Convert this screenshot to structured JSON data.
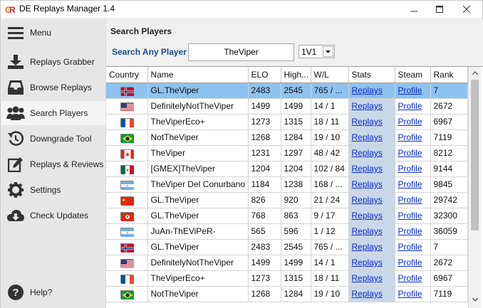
{
  "window": {
    "title": "DE Replays Manager 1.4"
  },
  "sidebar": {
    "items": [
      {
        "label": "Menu",
        "icon": "hamburger-icon"
      },
      {
        "label": "Replays Grabber",
        "icon": "download-icon"
      },
      {
        "label": "Browse Replays",
        "icon": "inbox-icon"
      },
      {
        "label": "Search Players",
        "icon": "users-icon"
      },
      {
        "label": "Downgrade Tool",
        "icon": "history-icon"
      },
      {
        "label": "Replays & Reviews",
        "icon": "edit-icon"
      },
      {
        "label": "Settings",
        "icon": "gear-icon"
      },
      {
        "label": "Check Updates",
        "icon": "cloud-download-icon"
      },
      {
        "label": "Help?",
        "icon": "help-icon"
      }
    ]
  },
  "main": {
    "title": "Search Players",
    "search_label": "Search Any Player",
    "search_value": "TheViper",
    "mode": "1V1"
  },
  "table": {
    "columns": [
      "Country",
      "Name",
      "ELO",
      "High...",
      "W/L",
      "Stats",
      "Steam",
      "Rank"
    ],
    "link_stats": "Replays",
    "link_steam": "Profile",
    "rows": [
      {
        "flag": "norway",
        "name": "GL.TheViper",
        "elo": "2483",
        "high": "2545",
        "wl": "765 / ...",
        "rank": "7"
      },
      {
        "flag": "usa",
        "name": "DefinitelyNotTheViper",
        "elo": "1499",
        "high": "1499",
        "wl": "14 / 1",
        "rank": "2672"
      },
      {
        "flag": "france",
        "name": "TheViperEco+",
        "elo": "1273",
        "high": "1315",
        "wl": "18 / 11",
        "rank": "6967"
      },
      {
        "flag": "brazil",
        "name": "NotTheViper",
        "elo": "1268",
        "high": "1284",
        "wl": "19 / 10",
        "rank": "7119"
      },
      {
        "flag": "canada",
        "name": "TheViper",
        "elo": "1231",
        "high": "1297",
        "wl": "48 / 42",
        "rank": "8212"
      },
      {
        "flag": "mexico",
        "name": "[GMEX]TheViper",
        "elo": "1204",
        "high": "1204",
        "wl": "102 / 84",
        "rank": "9144"
      },
      {
        "flag": "argentina",
        "name": "TheViper Del Conurbano",
        "elo": "1184",
        "high": "1238",
        "wl": "168 / ...",
        "rank": "9845"
      },
      {
        "flag": "china",
        "name": "GL.TheViper",
        "elo": "826",
        "high": "920",
        "wl": "21 / 24",
        "rank": "29742"
      },
      {
        "flag": "hongkong",
        "name": "GL.TheViper",
        "elo": "768",
        "high": "863",
        "wl": "9 / 17",
        "rank": "32300"
      },
      {
        "flag": "argentina",
        "name": "JuAn-ThEViPeR-",
        "elo": "565",
        "high": "596",
        "wl": "1 / 12",
        "rank": "36059"
      },
      {
        "flag": "norway",
        "name": "GL.TheViper",
        "elo": "2483",
        "high": "2545",
        "wl": "765 / ...",
        "rank": "7"
      },
      {
        "flag": "usa",
        "name": "DefinitelyNotTheViper",
        "elo": "1499",
        "high": "1499",
        "wl": "14 / 1",
        "rank": "2672"
      },
      {
        "flag": "france",
        "name": "TheViperEco+",
        "elo": "1273",
        "high": "1315",
        "wl": "18 / 11",
        "rank": "6967"
      },
      {
        "flag": "brazil",
        "name": "NotTheViper",
        "elo": "1268",
        "high": "1284",
        "wl": "19 / 10",
        "rank": "7119"
      }
    ]
  },
  "colors": {
    "selected_row": "#8ec2ef",
    "stats_column": "#c8d8ea",
    "link": "#0b2bd6",
    "search_label": "#1a4a8a"
  }
}
